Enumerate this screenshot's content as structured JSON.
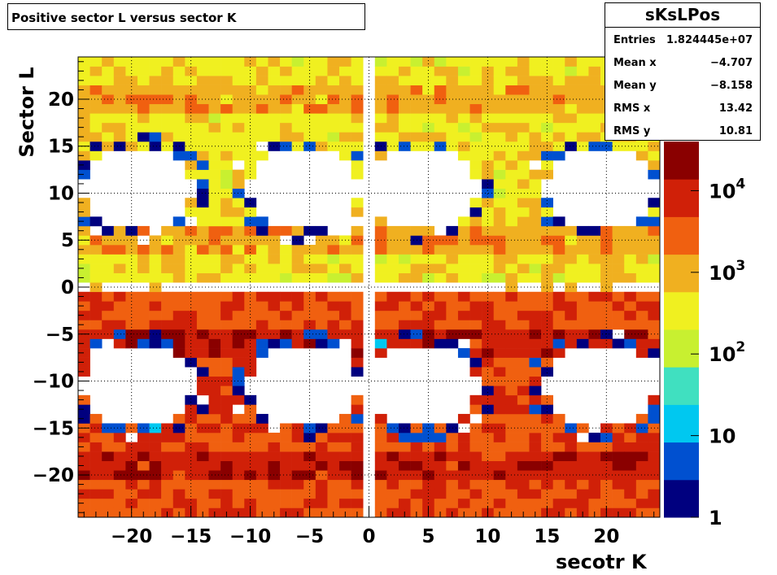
{
  "chart_data": {
    "type": "heatmap",
    "title": "Positive sector L versus sector K",
    "xlabel": "secotr K",
    "ylabel": "Sector L",
    "xlim": [
      -24.5,
      24.5
    ],
    "ylim": [
      -24.5,
      24.5
    ],
    "x_ticks": [
      "−20",
      "−15",
      "−10",
      "−5",
      "0",
      "5",
      "10",
      "15",
      "20"
    ],
    "x_tick_values": [
      -20,
      -15,
      -10,
      -5,
      0,
      5,
      10,
      15,
      20
    ],
    "y_ticks": [
      "20",
      "15",
      "10",
      "5",
      "0",
      "−5",
      "−10",
      "−15",
      "−20"
    ],
    "y_tick_values": [
      20,
      15,
      10,
      5,
      0,
      -5,
      -10,
      -15,
      -20
    ],
    "z_scale": "log",
    "z_range": [
      1,
      40000
    ],
    "z_ticks": [
      {
        "base": "1",
        "exp": "",
        "value": 1
      },
      {
        "base": "10",
        "exp": "",
        "value": 10
      },
      {
        "base": "10",
        "exp": "2",
        "value": 100
      },
      {
        "base": "10",
        "exp": "3",
        "value": 1000
      },
      {
        "base": "10",
        "exp": "4",
        "value": 10000
      }
    ],
    "grid": true,
    "colormap": [
      "#00007f",
      "#0050d0",
      "#00c8f0",
      "#40e0c0",
      "#c8f030",
      "#f0f020",
      "#f0b020",
      "#f06010",
      "#d02008",
      "#8a0000"
    ],
    "description_of_cells": "49x49 bins, gaps at |x|~0 and near ±10 intersections; negative L half higher counts (~1e4), positive L half ~1e3"
  },
  "stats": {
    "name": "sKsLPos",
    "rows": [
      {
        "label": "Entries",
        "value": "1.824445e+07"
      },
      {
        "label": "Mean x",
        "value": "−4.707"
      },
      {
        "label": "Mean y",
        "value": "−8.158"
      },
      {
        "label": "RMS x",
        "value": "13.42"
      },
      {
        "label": "RMS y",
        "value": "10.81"
      }
    ]
  }
}
